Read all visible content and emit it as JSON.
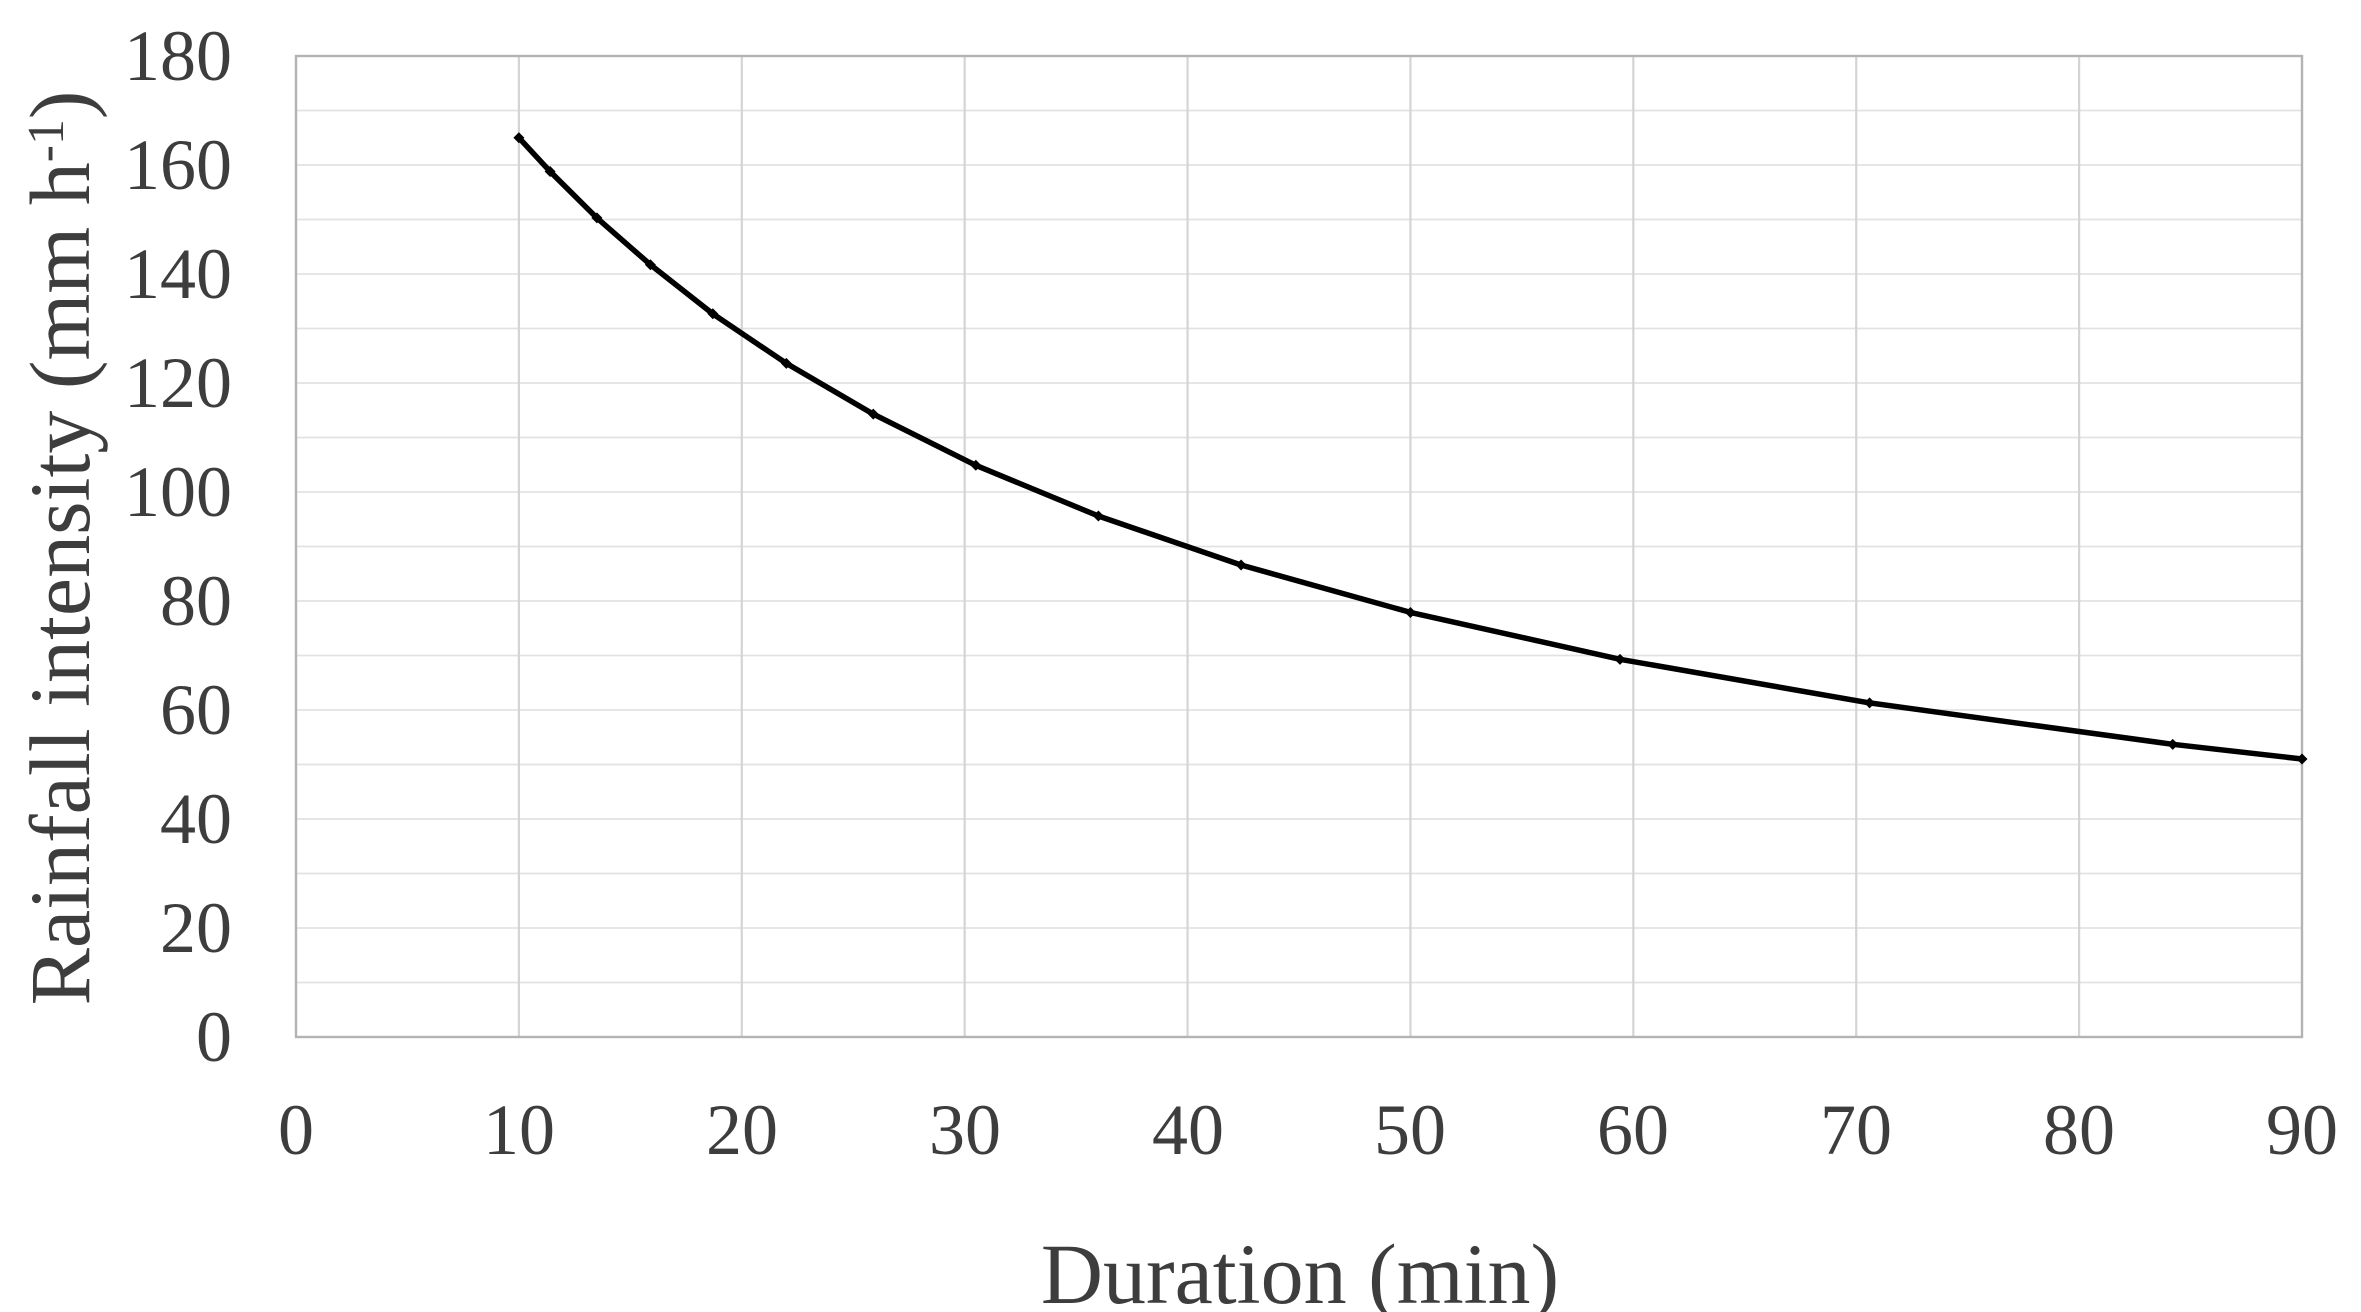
{
  "style": {
    "background": "#ffffff",
    "text_color": "#3d3d3d",
    "curve_color": "#000000",
    "h_grid_color": "#e2e2e2",
    "v_grid_color": "#d4d4d4",
    "border_color": "#b3b3b3"
  },
  "axes": {
    "ylabel_pre": "Rainfall intensity (mm h",
    "ylabel_sup": "-1",
    "ylabel_post": ")"
  },
  "chart_data": {
    "type": "line",
    "title": "",
    "xlabel": "Duration (min)",
    "ylabel": "Rainfall intensity (mm h⁻¹)",
    "xlim": [
      0,
      90
    ],
    "ylim": [
      0,
      180
    ],
    "x_ticks": [
      0,
      10,
      20,
      30,
      40,
      50,
      60,
      70,
      80,
      90
    ],
    "y_ticks": [
      0,
      20,
      40,
      60,
      80,
      100,
      120,
      140,
      160,
      180
    ],
    "grid": {
      "horizontal_step": 10,
      "vertical_step": 10,
      "shown": true
    },
    "legend_position": "none",
    "series": [
      {
        "name": "Rainfall intensity",
        "color": "#000000",
        "marker": "diamond",
        "points": [
          [
            10.0,
            165.0
          ],
          [
            11.4,
            158.8
          ],
          [
            13.5,
            150.3
          ],
          [
            15.9,
            141.7
          ],
          [
            18.7,
            132.7
          ],
          [
            22.0,
            123.6
          ],
          [
            25.9,
            114.3
          ],
          [
            30.5,
            104.9
          ],
          [
            36.0,
            95.6
          ],
          [
            42.4,
            86.6
          ],
          [
            50.0,
            77.9
          ],
          [
            59.4,
            69.3
          ],
          [
            70.6,
            61.3
          ],
          [
            84.2,
            53.7
          ],
          [
            90.0,
            51.0
          ]
        ]
      }
    ]
  }
}
